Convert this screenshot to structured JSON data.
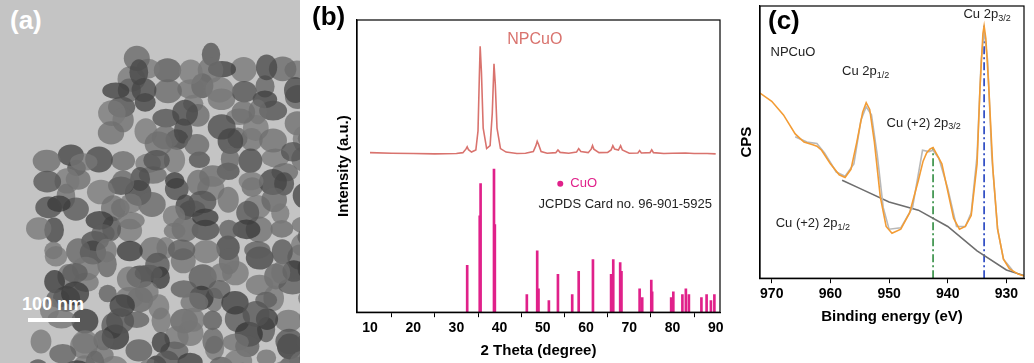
{
  "chart_data": [
    {
      "type": "image",
      "title": "(a)",
      "annotations": [
        "100 nm"
      ]
    },
    {
      "type": "line",
      "title": "(b)",
      "xlabel": "2 Theta (degree)",
      "ylabel": "Intensity (a.u.)",
      "xlim": [
        7,
        91
      ],
      "xticks": [
        10,
        20,
        30,
        40,
        50,
        60,
        70,
        80,
        90
      ],
      "ylim": [
        0,
        100
      ],
      "tick_labels": "x",
      "grid": false,
      "annotations": [
        "JCPDS Card no. 96-901-5925"
      ],
      "series": [
        {
          "name": "NPCuO",
          "color": "#d9736e",
          "type": "line",
          "x": [
            10,
            15,
            20,
            25,
            30,
            31.5,
            32.2,
            32.5,
            32.8,
            33.5,
            34.5,
            35,
            35.3,
            35.5,
            35.8,
            36.2,
            37,
            37.8,
            38.3,
            38.7,
            39,
            39.4,
            40.2,
            41.5,
            44,
            46,
            47.8,
            48.4,
            48.7,
            49,
            49.6,
            51,
            53,
            53.5,
            54,
            56,
            57.8,
            58.3,
            58.8,
            60.5,
            61.2,
            61.5,
            61.8,
            63,
            65,
            65.8,
            66.2,
            66.6,
            67.5,
            68,
            68.4,
            70,
            72,
            72.4,
            72.8,
            74.8,
            75.2,
            75.6,
            78,
            80,
            83,
            85,
            88,
            90
          ],
          "values": [
            54.6,
            54.4,
            54.3,
            54.2,
            54.3,
            54.6,
            55.8,
            56.6,
            55.6,
            54.8,
            55.5,
            62,
            80,
            91,
            82,
            63,
            56,
            57,
            68,
            85,
            78,
            63,
            56,
            54.8,
            54.3,
            54.4,
            55,
            57,
            58.5,
            57.5,
            55,
            54.4,
            54.6,
            55.5,
            54.7,
            54.4,
            54.8,
            56,
            55,
            54.6,
            55.8,
            57,
            55.8,
            54.6,
            54.7,
            55.5,
            57,
            55.8,
            55.5,
            57,
            55.5,
            54.4,
            54.5,
            55.3,
            54.5,
            54.6,
            55.6,
            54.6,
            54.3,
            54.4,
            54.5,
            54.3,
            54.3,
            54.2
          ]
        },
        {
          "name": "CuO",
          "color": "#e0218a",
          "type": "bar",
          "marker": "dot",
          "x": [
            32.5,
            35.4,
            35.6,
            38.7,
            38.9,
            46.3,
            48.7,
            49,
            51.4,
            53.5,
            56.8,
            58.3,
            61.6,
            65.8,
            66.3,
            67.9,
            68.2,
            72.4,
            73,
            75.1,
            75.3,
            79.7,
            80.2,
            82.3,
            83.1,
            83.8,
            86.7,
            87.9,
            88.9,
            89.7
          ],
          "values": [
            16,
            33,
            44,
            49,
            30,
            6,
            21,
            8,
            4,
            13,
            6,
            14,
            18,
            13,
            18,
            17,
            14,
            8,
            5,
            11,
            7,
            5,
            7,
            6,
            8,
            6,
            5,
            6,
            4,
            6
          ]
        }
      ]
    },
    {
      "type": "line",
      "title": "(c)",
      "xlabel": "Binding energy (eV)",
      "ylabel": "CPS",
      "xlim": [
        972,
        927
      ],
      "xticks": [
        970,
        960,
        950,
        940,
        930
      ],
      "ylim": [
        0,
        100
      ],
      "tick_labels": "x",
      "grid": false,
      "annotations": [
        "NPCuO",
        "Cu 2p3/2",
        "Cu 2p1/2",
        "Cu (+2) 2p3/2",
        "Cu (+2) 2p1/2"
      ],
      "series": [
        {
          "color": "#f39c34",
          "x": [
            972,
            970,
            968,
            966,
            964.5,
            963,
            962.3,
            961.5,
            960,
            958.5,
            957.5,
            956.5,
            955.5,
            954.5,
            953.9,
            953.3,
            952.5,
            951.5,
            950.5,
            949.5,
            948,
            946.5,
            945,
            944.2,
            943.6,
            943,
            942.5,
            942,
            941,
            940,
            939,
            938,
            937,
            936,
            935,
            934.5,
            934,
            933.8,
            933.5,
            933,
            932.3,
            931.5,
            930.5,
            929.5,
            928,
            927
          ],
          "values": [
            68,
            65,
            60,
            53,
            50,
            49,
            48.5,
            47,
            42,
            38,
            37,
            40,
            50,
            61,
            64.5,
            62,
            50,
            30,
            19,
            16.5,
            18,
            24,
            36,
            43,
            46,
            47.5,
            48,
            46,
            42,
            32,
            22,
            18,
            19,
            23,
            42,
            70,
            90,
            92.7,
            88,
            70,
            40,
            18,
            7,
            3.5,
            1.5,
            0.8
          ]
        },
        {
          "color": "#b8b8b8",
          "x": [
            966,
            964,
            962.3,
            961,
            959,
            957.5,
            956,
            954.8,
            953.9,
            953,
            952,
            951,
            950,
            948,
            946,
            944.3,
            943.2,
            942.5,
            941.5,
            940,
            938.5,
            937,
            936,
            935,
            934.3,
            933.8,
            933.2,
            932.5,
            931.5,
            930.5,
            929
          ],
          "values": [
            52,
            50,
            49.5,
            46,
            39,
            37.5,
            42,
            58,
            63,
            60,
            45,
            26,
            18,
            18.5,
            26,
            47,
            46.5,
            47,
            44,
            33,
            19,
            19,
            24,
            45,
            80,
            91,
            80,
            45,
            18,
            7,
            3
          ]
        },
        {
          "color": "#6e6e6e",
          "x": [
            958,
            955,
            950,
            945,
            940,
            935,
            930,
            927
          ],
          "values": [
            36,
            33,
            28,
            25,
            19,
            10,
            3,
            1
          ]
        },
        {
          "color": "#2e8b3e",
          "line_style": "dashdot",
          "x": [
            942.5,
            942.5
          ],
          "values": [
            0,
            48
          ]
        },
        {
          "color": "#1f3fbf",
          "line_style": "dashdot",
          "x": [
            933.8,
            933.8
          ],
          "values": [
            0,
            92.7
          ]
        }
      ]
    }
  ]
}
